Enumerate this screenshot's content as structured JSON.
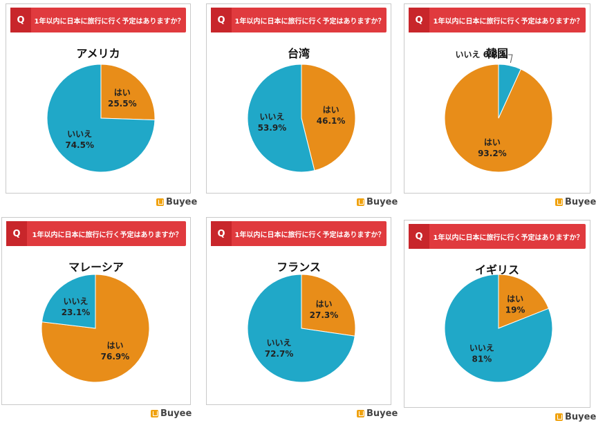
{
  "brand": "Buyee",
  "colors": {
    "yes": "#e88d19",
    "no": "#20a8c8",
    "header": "#e03a3e",
    "qmark": "#c8262b"
  },
  "chart_data": [
    {
      "type": "pie",
      "question": "1年以内に日本に旅行に行く予定はありますか？",
      "title": "アメリカ",
      "slices": [
        {
          "label": "はい",
          "value": 25.5,
          "value_label": "25.5%"
        },
        {
          "label": "いいえ",
          "value": 74.5,
          "value_label": "74.5%"
        }
      ]
    },
    {
      "type": "pie",
      "question": "1年以内に日本に旅行に行く予定はありますか？",
      "title": "台湾",
      "slices": [
        {
          "label": "はい",
          "value": 46.1,
          "value_label": "46.1%"
        },
        {
          "label": "いいえ",
          "value": 53.9,
          "value_label": "53.9%"
        }
      ]
    },
    {
      "type": "pie",
      "question": "1年以内に日本に旅行に行く予定はありますか？",
      "title": "韓国",
      "slices": [
        {
          "label": "はい",
          "value": 93.2,
          "value_label": "93.2%"
        },
        {
          "label": "いいえ",
          "value": 6.8,
          "value_label": "6.8%"
        }
      ]
    },
    {
      "type": "pie",
      "question": "1年以内に日本に旅行に行く予定はありますか？",
      "title": "マレーシア",
      "slices": [
        {
          "label": "はい",
          "value": 76.9,
          "value_label": "76.9%"
        },
        {
          "label": "いいえ",
          "value": 23.1,
          "value_label": "23.1%"
        }
      ]
    },
    {
      "type": "pie",
      "question": "1年以内に日本に旅行に行く予定はありますか？",
      "title": "フランス",
      "slices": [
        {
          "label": "はい",
          "value": 27.3,
          "value_label": "27.3%"
        },
        {
          "label": "いいえ",
          "value": 72.7,
          "value_label": "72.7%"
        }
      ]
    },
    {
      "type": "pie",
      "question": "1年以内に日本に旅行に行く予定はありますか？",
      "title": "イギリス",
      "slices": [
        {
          "label": "はい",
          "value": 19,
          "value_label": "19%"
        },
        {
          "label": "いいえ",
          "value": 81,
          "value_label": "81%"
        }
      ]
    }
  ]
}
